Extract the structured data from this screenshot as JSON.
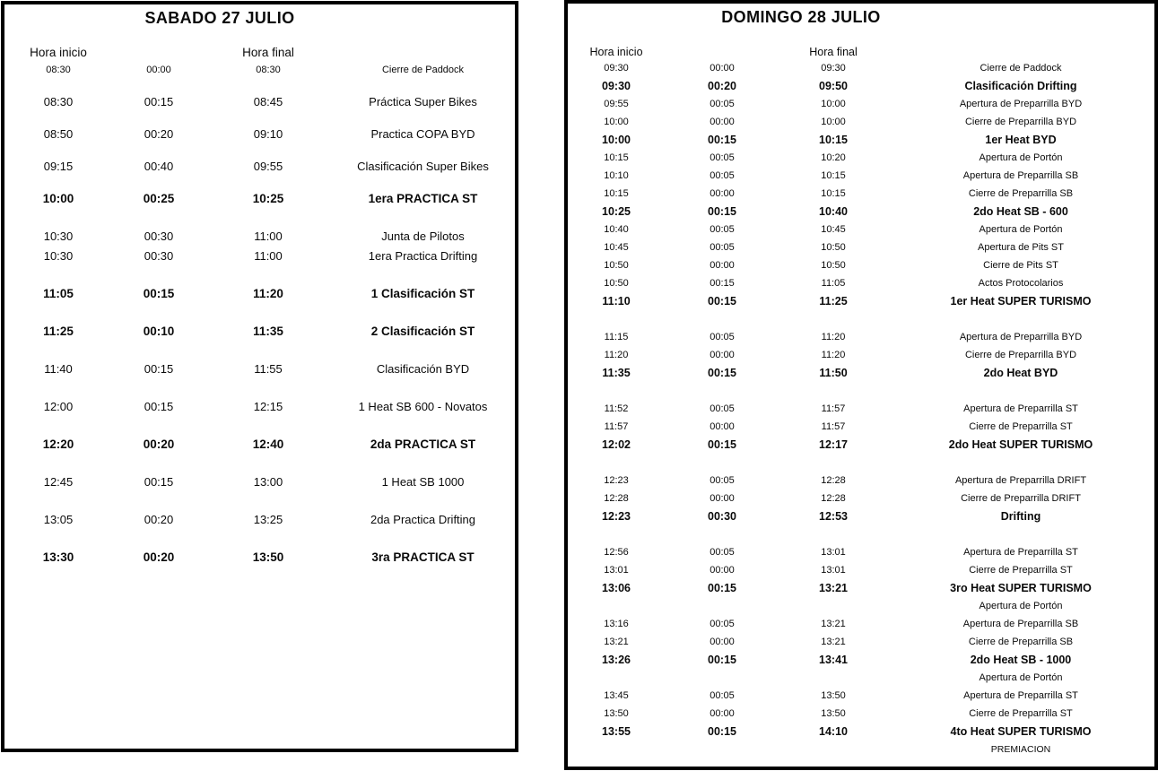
{
  "page": {
    "background_color": "#ffffff",
    "text_color": "#0a0a0a",
    "border_color": "#000000"
  },
  "saturday": {
    "title": "SABADO 27 JULIO",
    "headers": {
      "start": "Hora inicio",
      "end": "Hora final"
    },
    "groups": [
      {
        "rows": [
          {
            "start": "08:30",
            "dur": "00:00",
            "end": "08:30",
            "label": "Cierre de Paddock",
            "style": "small"
          }
        ]
      },
      {
        "rows": [
          {
            "start": "08:30",
            "dur": "00:15",
            "end": "08:45",
            "label": "Práctica Super Bikes",
            "style": "normal"
          }
        ]
      },
      {
        "rows": [
          {
            "start": "08:50",
            "dur": "00:20",
            "end": "09:10",
            "label": "Practica COPA BYD",
            "style": "normal"
          }
        ]
      },
      {
        "rows": [
          {
            "start": "09:15",
            "dur": "00:40",
            "end": "09:55",
            "label": "Clasificación Super Bikes",
            "style": "normal"
          }
        ]
      },
      {
        "rows": [
          {
            "start": "10:00",
            "dur": "00:25",
            "end": "10:25",
            "label": "1era PRACTICA ST",
            "style": "bold"
          }
        ]
      },
      {
        "rows": [
          {
            "start": "10:30",
            "dur": "00:30",
            "end": "11:00",
            "label": "Junta de Pilotos",
            "style": "normal"
          },
          {
            "start": "10:30",
            "dur": "00:30",
            "end": "11:00",
            "label": "1era Practica Drifting",
            "style": "normal"
          }
        ]
      },
      {
        "rows": [
          {
            "start": "11:05",
            "dur": "00:15",
            "end": "11:20",
            "label": "1 Clasificación ST",
            "style": "bold"
          }
        ]
      },
      {
        "rows": [
          {
            "start": "11:25",
            "dur": "00:10",
            "end": "11:35",
            "label": "2 Clasificación ST",
            "style": "bold"
          }
        ]
      },
      {
        "rows": [
          {
            "start": "11:40",
            "dur": "00:15",
            "end": "11:55",
            "label": "Clasificación BYD",
            "style": "normal"
          }
        ]
      },
      {
        "rows": [
          {
            "start": "12:00",
            "dur": "00:15",
            "end": "12:15",
            "label": "1 Heat SB 600 - Novatos",
            "style": "normal"
          }
        ]
      },
      {
        "rows": [
          {
            "start": "12:20",
            "dur": "00:20",
            "end": "12:40",
            "label": "2da PRACTICA ST",
            "style": "bold"
          }
        ]
      },
      {
        "rows": [
          {
            "start": "12:45",
            "dur": "00:15",
            "end": "13:00",
            "label": "1 Heat SB 1000",
            "style": "normal"
          }
        ]
      },
      {
        "rows": [
          {
            "start": "13:05",
            "dur": "00:20",
            "end": "13:25",
            "label": "2da Practica Drifting",
            "style": "normal"
          }
        ]
      },
      {
        "rows": [
          {
            "start": "13:30",
            "dur": "00:20",
            "end": "13:50",
            "label": "3ra PRACTICA ST",
            "style": "bold"
          }
        ]
      }
    ]
  },
  "sunday": {
    "title": "DOMINGO 28 JULIO",
    "headers": {
      "start": "Hora inicio",
      "end": "Hora final"
    },
    "groups": [
      {
        "rows": [
          {
            "start": "09:30",
            "dur": "00:00",
            "end": "09:30",
            "label": "Cierre de Paddock",
            "style": "normal"
          },
          {
            "start": "09:30",
            "dur": "00:20",
            "end": "09:50",
            "label": "Clasificación Drifting",
            "style": "bold"
          },
          {
            "start": "09:55",
            "dur": "00:05",
            "end": "10:00",
            "label": "Apertura de Preparrilla BYD",
            "style": "normal"
          },
          {
            "start": "10:00",
            "dur": "00:00",
            "end": "10:00",
            "label": "Cierre de Preparrilla BYD",
            "style": "normal"
          },
          {
            "start": "10:00",
            "dur": "00:15",
            "end": "10:15",
            "label": "1er Heat BYD",
            "style": "bold"
          },
          {
            "start": "10:15",
            "dur": "00:05",
            "end": "10:20",
            "label": "Apertura de Portón",
            "style": "normal"
          },
          {
            "start": "10:10",
            "dur": "00:05",
            "end": "10:15",
            "label": "Apertura de Preparrilla SB",
            "style": "normal"
          },
          {
            "start": "10:15",
            "dur": "00:00",
            "end": "10:15",
            "label": "Cierre de Preparrilla SB",
            "style": "normal"
          },
          {
            "start": "10:25",
            "dur": "00:15",
            "end": "10:40",
            "label": "2do Heat SB - 600",
            "style": "bold"
          },
          {
            "start": "10:40",
            "dur": "00:05",
            "end": "10:45",
            "label": "Apertura de Portón",
            "style": "normal"
          },
          {
            "start": "10:45",
            "dur": "00:05",
            "end": "10:50",
            "label": "Apertura de Pits ST",
            "style": "normal"
          },
          {
            "start": "10:50",
            "dur": "00:00",
            "end": "10:50",
            "label": "Cierre de Pits ST",
            "style": "normal"
          },
          {
            "start": "10:50",
            "dur": "00:15",
            "end": "11:05",
            "label": "Actos Protocolarios",
            "style": "normal"
          },
          {
            "start": "11:10",
            "dur": "00:15",
            "end": "11:25",
            "label": "1er Heat SUPER TURISMO",
            "style": "bold"
          }
        ]
      },
      {
        "rows": [
          {
            "start": "11:15",
            "dur": "00:05",
            "end": "11:20",
            "label": "Apertura de Preparrilla BYD",
            "style": "normal"
          },
          {
            "start": "11:20",
            "dur": "00:00",
            "end": "11:20",
            "label": "Cierre de Preparrilla BYD",
            "style": "normal"
          },
          {
            "start": "11:35",
            "dur": "00:15",
            "end": "11:50",
            "label": "2do Heat BYD",
            "style": "bold"
          }
        ]
      },
      {
        "rows": [
          {
            "start": "11:52",
            "dur": "00:05",
            "end": "11:57",
            "label": "Apertura de Preparrilla ST",
            "style": "normal"
          },
          {
            "start": "11:57",
            "dur": "00:00",
            "end": "11:57",
            "label": "Cierre de Preparrilla ST",
            "style": "normal"
          },
          {
            "start": "12:02",
            "dur": "00:15",
            "end": "12:17",
            "label": "2do Heat SUPER TURISMO",
            "style": "bold"
          }
        ]
      },
      {
        "rows": [
          {
            "start": "12:23",
            "dur": "00:05",
            "end": "12:28",
            "label": "Apertura de Preparrilla DRIFT",
            "style": "normal"
          },
          {
            "start": "12:28",
            "dur": "00:00",
            "end": "12:28",
            "label": "Cierre de Preparrilla DRIFT",
            "style": "normal"
          },
          {
            "start": "12:23",
            "dur": "00:30",
            "end": "12:53",
            "label": "Drifting",
            "style": "bold"
          }
        ]
      },
      {
        "rows": [
          {
            "start": "12:56",
            "dur": "00:05",
            "end": "13:01",
            "label": "Apertura de Preparrilla ST",
            "style": "normal"
          },
          {
            "start": "13:01",
            "dur": "00:00",
            "end": "13:01",
            "label": "Cierre de Preparrilla ST",
            "style": "normal"
          },
          {
            "start": "13:06",
            "dur": "00:15",
            "end": "13:21",
            "label": "3ro Heat SUPER TURISMO",
            "style": "bold"
          },
          {
            "start": "",
            "dur": "",
            "end": "",
            "label": "Apertura de Portón",
            "style": "normal"
          },
          {
            "start": "13:16",
            "dur": "00:05",
            "end": "13:21",
            "label": "Apertura de Preparrilla SB",
            "style": "normal"
          },
          {
            "start": "13:21",
            "dur": "00:00",
            "end": "13:21",
            "label": "Cierre de Preparrilla SB",
            "style": "normal"
          },
          {
            "start": "13:26",
            "dur": "00:15",
            "end": "13:41",
            "label": "2do Heat SB - 1000",
            "style": "bold"
          },
          {
            "start": "",
            "dur": "",
            "end": "",
            "label": "Apertura de Portón",
            "style": "normal"
          },
          {
            "start": "13:45",
            "dur": "00:05",
            "end": "13:50",
            "label": "Apertura de Preparrilla ST",
            "style": "normal"
          },
          {
            "start": "13:50",
            "dur": "00:00",
            "end": "13:50",
            "label": "Cierre de Preparrilla ST",
            "style": "normal"
          },
          {
            "start": "13:55",
            "dur": "00:15",
            "end": "14:10",
            "label": "4to Heat SUPER TURISMO",
            "style": "bold"
          },
          {
            "start": "",
            "dur": "",
            "end": "",
            "label": "PREMIACION",
            "style": "small"
          }
        ]
      }
    ]
  }
}
